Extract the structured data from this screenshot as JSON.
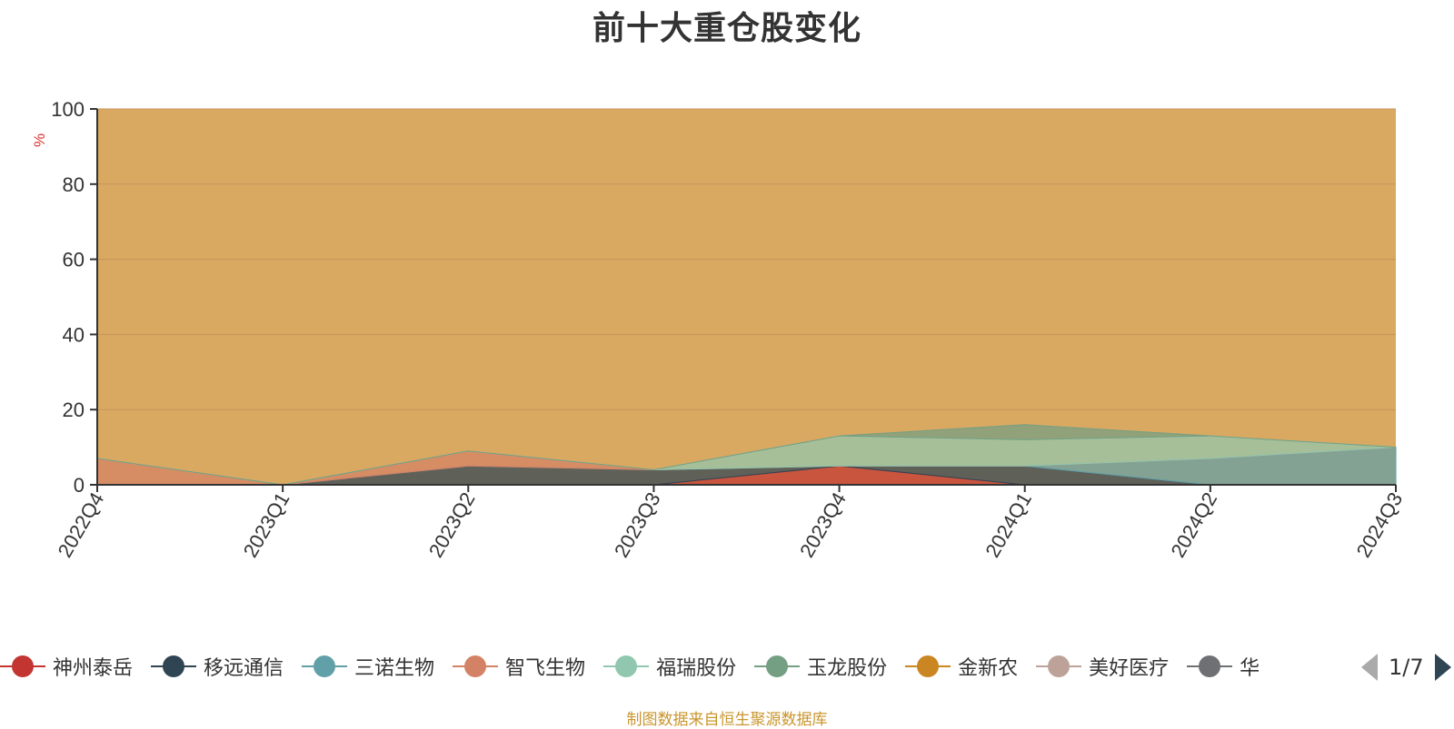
{
  "title": "前十大重仓股变化",
  "source_note": "制图数据来自恒生聚源数据库",
  "pager": {
    "text": "1/7"
  },
  "legend": [
    {
      "label": "神州泰岳",
      "color": "#c23531"
    },
    {
      "label": "移远通信",
      "color": "#2f4554"
    },
    {
      "label": "三诺生物",
      "color": "#61a0a8"
    },
    {
      "label": "智飞生物",
      "color": "#d48265"
    },
    {
      "label": "福瑞股份",
      "color": "#91c7ae"
    },
    {
      "label": "玉龙股份",
      "color": "#749f83"
    },
    {
      "label": "金新农",
      "color": "#ca8622"
    },
    {
      "label": "美好医疗",
      "color": "#bda29a"
    },
    {
      "label": "华",
      "color": "#6e7074"
    }
  ],
  "chart_data": {
    "type": "area",
    "stacked": true,
    "title": "前十大重仓股变化",
    "ylabel": "%",
    "ylim": [
      0,
      100
    ],
    "yticks": [
      0,
      20,
      40,
      60,
      80,
      100
    ],
    "categories": [
      "2022Q4",
      "2023Q1",
      "2023Q2",
      "2023Q3",
      "2023Q4",
      "2024Q1",
      "2024Q2",
      "2024Q3"
    ],
    "series": [
      {
        "name": "神州泰岳",
        "color": "#c23531",
        "values": [
          0,
          0,
          0,
          0,
          5,
          0,
          0,
          0
        ]
      },
      {
        "name": "移远通信",
        "color": "#2f4554",
        "values": [
          0,
          0,
          5,
          4,
          0,
          5,
          0,
          0
        ]
      },
      {
        "name": "三诺生物",
        "color": "#61a0a8",
        "values": [
          0,
          0,
          0,
          0,
          0,
          0,
          7,
          10
        ]
      },
      {
        "name": "智飞生物",
        "color": "#d48265",
        "values": [
          7,
          0,
          4,
          0,
          0,
          0,
          0,
          0
        ]
      },
      {
        "name": "福瑞股份",
        "color": "#91c7ae",
        "values": [
          0,
          0,
          0,
          0,
          8,
          7,
          6,
          0
        ]
      },
      {
        "name": "玉龙股份",
        "color": "#749f83",
        "values": [
          0,
          0,
          0,
          0,
          0,
          4,
          0,
          0
        ]
      }
    ]
  }
}
